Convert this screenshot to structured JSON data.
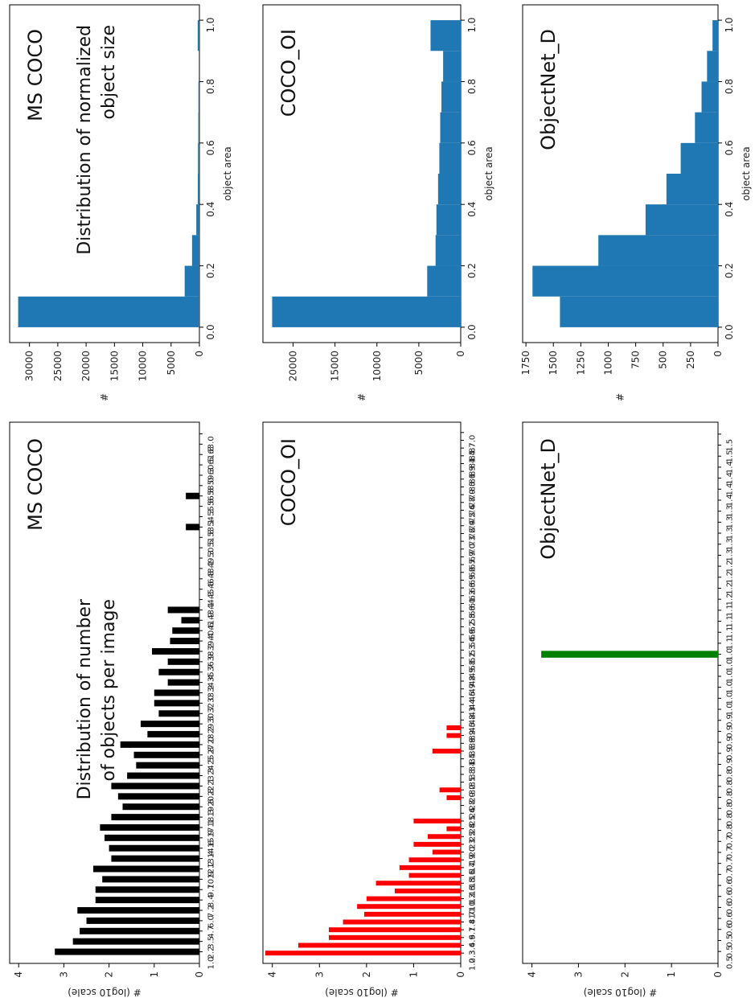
{
  "chart_data": [
    {
      "id": "obj_count_mscoco",
      "type": "bar",
      "title": "MS COCO",
      "annotation": "Distribution of number of objects per image",
      "annotation_lines": [
        "Distribution of number",
        "of objects per image"
      ],
      "ylabel": "# (log10 scale)",
      "xlabel": "",
      "ylim": [
        0,
        4.2
      ],
      "yticks": [
        0,
        1,
        2,
        3,
        4
      ],
      "bar_color": "#000000",
      "categories": [
        "1.0",
        "2.2",
        "3.5",
        "4.7",
        "6.0",
        "7.2",
        "8.4",
        "9.7",
        "10.9",
        "12.2",
        "13.4",
        "14.6",
        "15.9",
        "17.1",
        "18.3",
        "19.6",
        "20.8",
        "22.1",
        "23.3",
        "24.5",
        "25.8",
        "27.0",
        "28.2",
        "29.5",
        "30.7",
        "32.0",
        "33.2",
        "34.4",
        "35.7",
        "36.9",
        "38.2",
        "39.4",
        "40.6",
        "41.9",
        "43.1",
        "44.3",
        "45.6",
        "46.8",
        "48.1",
        "49.3",
        "50.5",
        "51.8",
        "53.0",
        "54.2",
        "55.5",
        "56.7",
        "58.0",
        "59.2",
        "60.4",
        "61.7",
        "62.9"
      ],
      "tick_labels": [
        "1.0",
        "2.2",
        "3.5",
        "4.7",
        "6.0",
        "7.2",
        "8.4",
        "9.7",
        "10.9",
        "12.2",
        "13.4",
        "14.6",
        "15.9",
        "17.1",
        "18.3",
        "19.6",
        "20.8",
        "22.1",
        "23.3",
        "24.5",
        "25.8",
        "27.0",
        "28.2",
        "29.5",
        "30.7",
        "32.0",
        "33.2",
        "34.4",
        "35.7",
        "36.9",
        "38.2",
        "39.4",
        "40.6",
        "41.9",
        "43.1",
        "44.3",
        "45.6",
        "46.8",
        "48.1",
        "49.3",
        "50.5",
        "51.8",
        "53.1",
        "54.3",
        "55.6",
        "56.8",
        "58.0",
        "59.3",
        "60.5",
        "61.8",
        "63.0"
      ],
      "values": [
        3.2,
        2.8,
        2.65,
        2.5,
        2.7,
        2.3,
        2.3,
        2.15,
        2.35,
        1.95,
        2.0,
        2.1,
        2.2,
        1.95,
        1.7,
        1.8,
        1.95,
        1.6,
        1.4,
        1.45,
        1.75,
        1.15,
        1.3,
        0.9,
        1.0,
        1.0,
        0.7,
        0.9,
        0.7,
        1.05,
        0.65,
        0.6,
        0.4,
        0.7,
        0,
        0,
        0,
        0,
        0,
        0,
        0,
        0.3,
        0,
        0,
        0.3,
        0,
        0,
        0,
        0,
        0,
        0
      ]
    },
    {
      "id": "obj_size_mscoco",
      "type": "bar",
      "title": "MS COCO",
      "annotation": "Distribution of normalized object size",
      "annotation_lines": [
        "Distribution of normalized",
        "object size"
      ],
      "xlabel": "object area",
      "ylabel": "#",
      "xlim": [
        -0.05,
        1.05
      ],
      "ylim": [
        0,
        33500
      ],
      "xticks": [
        "0.0",
        "0.2",
        "0.4",
        "0.6",
        "0.8",
        "1.0"
      ],
      "yticks": [
        "0",
        "5000",
        "10000",
        "15000",
        "20000",
        "25000",
        "30000"
      ],
      "bar_color": "#1f77b4",
      "bins": [
        [
          0,
          0.1
        ],
        [
          0.1,
          0.2
        ],
        [
          0.2,
          0.3
        ],
        [
          0.3,
          0.4
        ],
        [
          0.4,
          0.5
        ],
        [
          0.5,
          0.6
        ],
        [
          0.6,
          0.7
        ],
        [
          0.7,
          0.8
        ],
        [
          0.8,
          0.9
        ],
        [
          0.9,
          1.0
        ]
      ],
      "values": [
        32000,
        2600,
        1300,
        550,
        280,
        250,
        200,
        180,
        120,
        300
      ]
    },
    {
      "id": "obj_count_cocooi",
      "type": "bar",
      "title": "COCO_OI",
      "ylabel": "# (log10 scale)",
      "xlabel": "",
      "ylim": [
        0,
        4.2
      ],
      "yticks": [
        0,
        1,
        2,
        3,
        4
      ],
      "bar_color": "#ff0000",
      "categories": [
        "1.0",
        "2.2",
        "3.5",
        "4.7",
        "6.0",
        "7.2",
        "8.4",
        "9.7",
        "10.9",
        "12.2",
        "13.4",
        "14.6",
        "15.9",
        "17.1",
        "18.3",
        "19.6",
        "20.8",
        "22.1",
        "23.3",
        "24.5",
        "25.8",
        "27.0",
        "28.2",
        "29.5",
        "30.7",
        "32.0",
        "33.2",
        "34.4",
        "35.7",
        "36.9",
        "38.2",
        "39.4",
        "40.6",
        "41.9",
        "43.1",
        "44.3",
        "45.6",
        "46.8",
        "48.1",
        "49.3",
        "50.5",
        "51.8",
        "53.0",
        "54.2",
        "55.5",
        "56.7",
        "58.0",
        "59.2",
        "60.4",
        "61.7",
        "62.9",
        "64.1",
        "65.4",
        "66.6",
        "67.8",
        "69.1",
        "70.3",
        "71.6",
        "72.8",
        "74.0",
        "75.3",
        "76.5",
        "77.8",
        "79.0",
        "80.2",
        "81.5",
        "82.7",
        "84.0"
      ],
      "tick_labels": [
        "1.0",
        "2.3",
        "3.6",
        "4.9",
        "6.1",
        "7.4",
        "8.7",
        "10.0",
        "11.3",
        "12.6",
        "13.8",
        "15.1",
        "16.4",
        "17.7",
        "19.0",
        "20.3",
        "21.5",
        "22.8",
        "24.1",
        "25.4",
        "26.7",
        "28.0",
        "29.2",
        "30.5",
        "31.8",
        "33.1",
        "34.4",
        "35.7",
        "36.9",
        "38.2",
        "39.5",
        "40.8",
        "42.1",
        "43.4",
        "44.6",
        "45.9",
        "47.2",
        "48.5",
        "49.8",
        "51.1",
        "52.3",
        "53.6",
        "54.9",
        "56.2",
        "57.5",
        "58.8",
        "60.0",
        "61.3",
        "62.6",
        "63.9",
        "65.2",
        "66.5",
        "67.7",
        "69.0",
        "70.3",
        "71.6",
        "72.9",
        "74.2",
        "75.4",
        "76.7",
        "78.0",
        "79.3",
        "80.6",
        "81.9",
        "83.1",
        "84.4",
        "85.7",
        "87.0"
      ],
      "values": [
        4.15,
        3.45,
        2.8,
        2.8,
        2.5,
        2.05,
        2.2,
        2.0,
        1.4,
        1.8,
        1.1,
        1.3,
        1.1,
        0.6,
        1.0,
        0.7,
        0.3,
        1.0,
        0,
        0,
        0.3,
        0.45,
        0,
        0,
        0,
        0,
        0.6,
        0,
        0.3,
        0.3,
        0,
        0,
        0,
        0,
        0,
        0,
        0,
        0,
        0,
        0,
        0,
        0,
        0,
        0,
        0,
        0,
        0,
        0,
        0,
        0,
        0,
        0,
        0,
        0,
        0,
        0,
        0,
        0,
        0,
        0,
        0,
        0,
        0,
        0,
        0,
        0,
        0,
        0
      ]
    },
    {
      "id": "obj_size_cocooi",
      "type": "bar",
      "title": "COCO_OI",
      "xlabel": "object area",
      "ylabel": "#",
      "xlim": [
        -0.05,
        1.05
      ],
      "ylim": [
        0,
        23600
      ],
      "xticks": [
        "0.0",
        "0.2",
        "0.4",
        "0.6",
        "0.8",
        "1.0"
      ],
      "yticks": [
        "0",
        "5000",
        "10000",
        "15000",
        "20000"
      ],
      "bar_color": "#1f77b4",
      "bins": [
        [
          0,
          0.1
        ],
        [
          0.1,
          0.2
        ],
        [
          0.2,
          0.3
        ],
        [
          0.3,
          0.4
        ],
        [
          0.4,
          0.5
        ],
        [
          0.5,
          0.6
        ],
        [
          0.6,
          0.7
        ],
        [
          0.7,
          0.8
        ],
        [
          0.8,
          0.9
        ],
        [
          0.9,
          1.0
        ]
      ],
      "values": [
        22500,
        4000,
        3000,
        2900,
        2700,
        2550,
        2450,
        2300,
        2100,
        3600
      ]
    },
    {
      "id": "obj_count_objectnet",
      "type": "bar",
      "title": "ObjectNet_D",
      "ylabel": "# (log10 scale)",
      "xlabel": "",
      "ylim": [
        0,
        4.2
      ],
      "yticks": [
        0,
        1,
        2,
        3,
        4
      ],
      "bar_color": "#008000",
      "tick_labels": [
        "0.5",
        "0.5",
        "0.5",
        "0.6",
        "0.6",
        "0.6",
        "0.6",
        "0.6",
        "0.7",
        "0.7",
        "0.7",
        "0.7",
        "0.8",
        "0.8",
        "0.8",
        "0.8",
        "0.8",
        "0.8",
        "0.9",
        "0.9",
        "0.9",
        "0.9",
        "0.9",
        "1.0",
        "1.0",
        "1.0",
        "1.0",
        "1.0",
        "1.0",
        "1.1",
        "1.1",
        "1.1",
        "1.1",
        "1.2",
        "1.2",
        "1.2",
        "1.2",
        "1.3",
        "1.3",
        "1.3",
        "1.3",
        "1.3",
        "1.4",
        "1.4",
        "1.4",
        "1.4",
        "1.5",
        "1.5"
      ],
      "values": [
        0,
        0,
        0,
        0,
        0,
        0,
        0,
        0,
        0,
        0,
        0,
        0,
        0,
        0,
        0,
        0,
        0,
        0,
        0,
        0,
        0,
        0,
        0,
        0,
        0,
        0,
        0,
        3.8,
        0,
        0,
        0,
        0,
        0,
        0,
        0,
        0,
        0,
        0,
        0,
        0,
        0,
        0,
        0,
        0,
        0,
        0,
        0,
        0
      ]
    },
    {
      "id": "obj_size_objectnet",
      "type": "bar",
      "title": "ObjectNet_D",
      "xlabel": "object area",
      "ylabel": "#",
      "xlim": [
        -0.05,
        1.05
      ],
      "ylim": [
        0,
        1780
      ],
      "xticks": [
        "0.0",
        "0.2",
        "0.4",
        "0.6",
        "0.8",
        "1.0"
      ],
      "yticks": [
        "0",
        "250",
        "500",
        "750",
        "1000",
        "1250",
        "1500",
        "1750"
      ],
      "bar_color": "#1f77b4",
      "bins": [
        [
          0,
          0.1
        ],
        [
          0.1,
          0.2
        ],
        [
          0.2,
          0.3
        ],
        [
          0.3,
          0.4
        ],
        [
          0.4,
          0.5
        ],
        [
          0.5,
          0.6
        ],
        [
          0.6,
          0.7
        ],
        [
          0.7,
          0.8
        ],
        [
          0.8,
          0.9
        ],
        [
          0.9,
          1.0
        ]
      ],
      "values": [
        1440,
        1690,
        1090,
        660,
        470,
        340,
        210,
        150,
        100,
        50
      ]
    }
  ]
}
